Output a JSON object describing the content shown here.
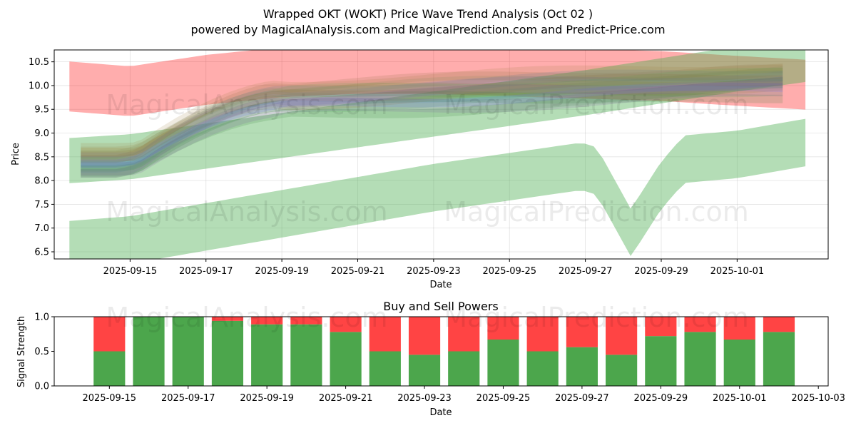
{
  "title_line1": "Wrapped OKT (WOKT) Price Wave Trend Analysis (Oct 02 )",
  "title_line2": "powered by MagicalAnalysis.com and MagicalPrediction.com and Predict-Price.com",
  "watermarks": [
    "MagicalAnalysis.com",
    "MagicalPrediction.com"
  ],
  "colors": {
    "green_band": "#4caf50",
    "red_band": "#ff0000",
    "blue_band": "#6a6aff",
    "buy": "#4ca64c",
    "sell": "#ff4444"
  },
  "chart_data": [
    {
      "type": "area",
      "xlabel": "Date",
      "ylabel": "Price",
      "ylim": [
        6.35,
        10.75
      ],
      "xlim_days": [
        -2.0,
        18.4
      ],
      "x_ticks": [
        "2025-09-15",
        "2025-09-17",
        "2025-09-19",
        "2025-09-21",
        "2025-09-23",
        "2025-09-25",
        "2025-09-27",
        "2025-09-29",
        "2025-10-01"
      ],
      "y_ticks": [
        "6.5",
        "7.0",
        "7.5",
        "8.0",
        "8.5",
        "9.0",
        "9.5",
        "10.0",
        "10.5"
      ],
      "grid": true,
      "bands": [
        {
          "name": "red",
          "color": "#ff0000",
          "start": "2025-09-13",
          "end": "2025-10-03",
          "center": [
            [
              -1.6,
              9.98
            ],
            [
              0,
              9.88
            ],
            [
              2,
              10.12
            ],
            [
              4,
              10.28
            ],
            [
              6,
              10.35
            ],
            [
              8,
              10.35
            ],
            [
              10,
              10.3
            ],
            [
              12,
              10.25
            ],
            [
              14,
              10.2
            ],
            [
              16,
              10.1
            ],
            [
              17.8,
              10.02
            ]
          ],
          "width": 1.05
        },
        {
          "name": "green-top",
          "color": "#4caf50",
          "start": "2025-09-13",
          "end": "2025-10-03",
          "center": [
            [
              -1.6,
              8.42
            ],
            [
              0,
              8.5
            ],
            [
              4,
              8.95
            ],
            [
              8,
              9.4
            ],
            [
              12,
              9.85
            ],
            [
              16,
              10.35
            ],
            [
              17.8,
              10.55
            ]
          ],
          "width": 0.95
        },
        {
          "name": "green-bottom",
          "color": "#4caf50",
          "start": "2025-09-13",
          "end": "2025-10-03",
          "center": [
            [
              -1.6,
              6.65
            ],
            [
              0,
              6.75
            ],
            [
              4,
              7.3
            ],
            [
              8,
              7.85
            ],
            [
              11.9,
              8.3
            ],
            [
              12.3,
              8.2
            ],
            [
              13.2,
              6.9
            ],
            [
              14.0,
              7.9
            ],
            [
              14.6,
              8.45
            ],
            [
              16,
              8.55
            ],
            [
              17.8,
              8.8
            ]
          ],
          "width": 1.0
        }
      ]
    },
    {
      "type": "bar",
      "title": "Buy and Sell Powers",
      "xlabel": "Date",
      "ylabel": "Signal Strength",
      "ylim": [
        0.0,
        1.0
      ],
      "x_ticks": [
        "2025-09-15",
        "2025-09-17",
        "2025-09-19",
        "2025-09-21",
        "2025-09-23",
        "2025-09-25",
        "2025-09-27",
        "2025-09-29",
        "2025-10-01",
        "2025-10-03"
      ],
      "y_ticks": [
        "0.0",
        "0.5",
        "1.0"
      ],
      "categories": [
        "2025-09-15",
        "2025-09-16",
        "2025-09-17",
        "2025-09-18",
        "2025-09-19",
        "2025-09-20",
        "2025-09-21",
        "2025-09-22",
        "2025-09-23",
        "2025-09-24",
        "2025-09-25",
        "2025-09-26",
        "2025-09-27",
        "2025-09-28",
        "2025-09-29",
        "2025-09-30",
        "2025-10-01",
        "2025-10-02"
      ],
      "series": [
        {
          "values": [
            0.5,
            1.0,
            1.0,
            0.94,
            0.89,
            0.89,
            0.78,
            0.5,
            0.45,
            0.5,
            0.67,
            0.5,
            0.56,
            0.45,
            0.72,
            0.78,
            0.67,
            0.78
          ]
        },
        {
          "values": [
            0.5,
            0.0,
            0.0,
            0.06,
            0.11,
            0.11,
            0.22,
            0.5,
            0.55,
            0.5,
            0.33,
            0.5,
            0.44,
            0.55,
            0.28,
            0.22,
            0.33,
            0.22
          ]
        }
      ]
    }
  ]
}
